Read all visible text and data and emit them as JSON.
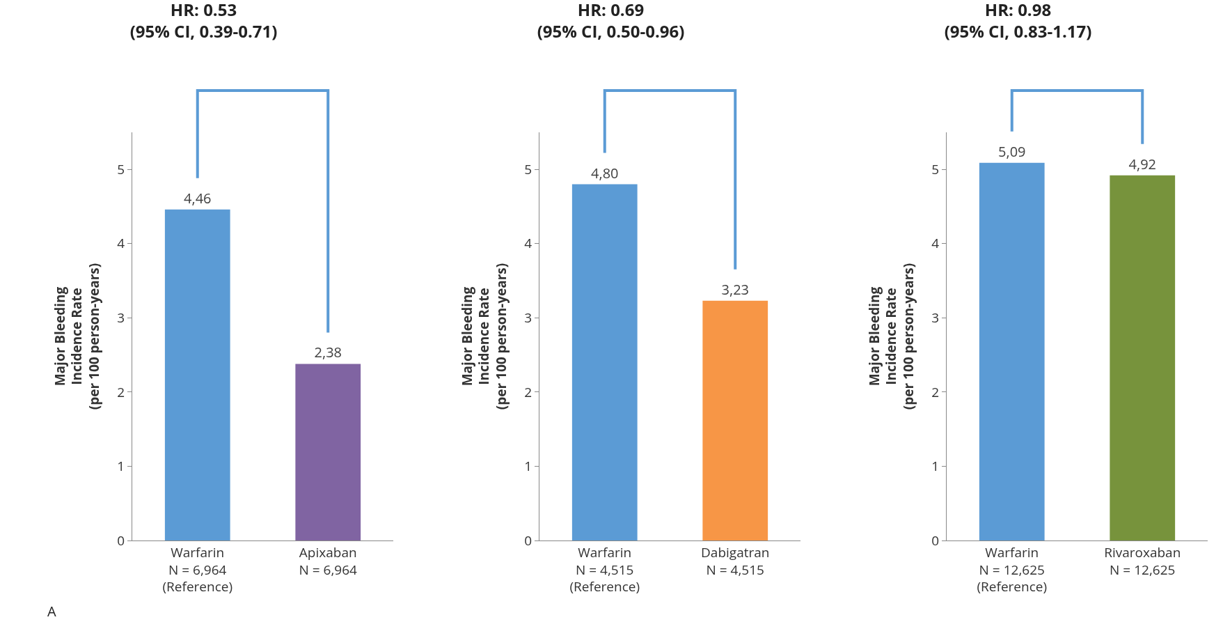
{
  "chart_data": [
    {
      "type": "bar",
      "title": "HR: 0.53",
      "subtitle": "(95% CI, 0.39-0.71)",
      "ylabel": "Major Bleeding\nIncidence Rate\n(per 100 person-years)",
      "categories": [
        "Warfarin\nN = 6,964\n(Reference)",
        "Apixaban\nN = 6,964"
      ],
      "values": [
        4.46,
        2.38
      ],
      "colors": [
        "#5b9bd5",
        "#8064a2"
      ],
      "value_labels": [
        "4,46",
        "2,38"
      ],
      "ylim": [
        0,
        5.5
      ],
      "yticks": [
        0,
        1,
        2,
        3,
        4,
        5
      ],
      "grid": false,
      "annotations": [
        "A"
      ]
    },
    {
      "type": "bar",
      "title": "HR: 0.69",
      "subtitle": "(95% CI, 0.50-0.96)",
      "ylabel": "Major Bleeding\nIncidence Rate\n(per 100 person-years)",
      "categories": [
        "Warfarin\nN = 4,515\n(Reference)",
        "Dabigatran\nN = 4,515"
      ],
      "values": [
        4.8,
        3.23
      ],
      "colors": [
        "#5b9bd5",
        "#f79646"
      ],
      "value_labels": [
        "4,80",
        "3,23"
      ],
      "ylim": [
        0,
        5.5
      ],
      "yticks": [
        0,
        1,
        2,
        3,
        4,
        5
      ],
      "grid": false
    },
    {
      "type": "bar",
      "title": "HR: 0.98",
      "subtitle": "(95% CI, 0.83-1.17)",
      "ylabel": "Major Bleeding\nIncidence Rate\n(per 100 person-years)",
      "categories": [
        "Warfarin\nN = 12,625\n(Reference)",
        "Rivaroxaban\nN = 12,625"
      ],
      "values": [
        5.09,
        4.92
      ],
      "colors": [
        "#5b9bd5",
        "#77933c"
      ],
      "value_labels": [
        "5,09",
        "4,92"
      ],
      "ylim": [
        0,
        5.5
      ],
      "yticks": [
        0,
        1,
        2,
        3,
        4,
        5
      ],
      "grid": false
    }
  ]
}
